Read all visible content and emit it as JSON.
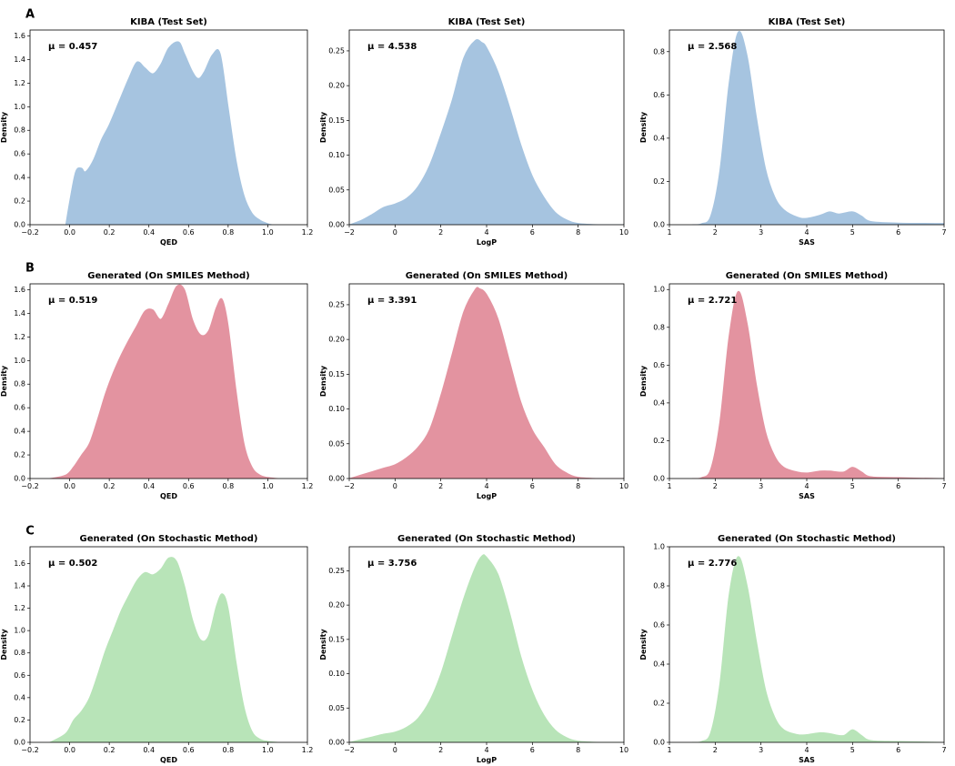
{
  "figure": {
    "rows": [
      {
        "label": "A",
        "color": "#a6c4e0"
      },
      {
        "label": "B",
        "color": "#e393a0"
      },
      {
        "label": "C",
        "color": "#b8e4b8"
      }
    ]
  },
  "chart_data": [
    {
      "type": "area",
      "row": 0,
      "col": 0,
      "title": "KIBA (Test Set)",
      "xlabel": "QED",
      "ylabel": "Density",
      "annotation": "μ = 0.457",
      "xlim": [
        -0.2,
        1.2
      ],
      "ylim": [
        0,
        1.65
      ],
      "xticks": [
        "−0.2",
        "0.0",
        "0.2",
        "0.4",
        "0.6",
        "0.8",
        "1.0",
        "1.2"
      ],
      "yticks": [
        "0.0",
        "0.2",
        "0.4",
        "0.6",
        "0.8",
        "1.0",
        "1.2",
        "1.4",
        "1.6"
      ],
      "x": [
        -0.02,
        0.0,
        0.03,
        0.06,
        0.08,
        0.12,
        0.16,
        0.2,
        0.25,
        0.3,
        0.34,
        0.38,
        0.42,
        0.46,
        0.5,
        0.55,
        0.58,
        0.62,
        0.65,
        0.68,
        0.72,
        0.76,
        0.8,
        0.84,
        0.88,
        0.92,
        0.96,
        1.0,
        1.02
      ],
      "y": [
        0.0,
        0.2,
        0.45,
        0.48,
        0.45,
        0.55,
        0.72,
        0.85,
        1.05,
        1.25,
        1.38,
        1.33,
        1.28,
        1.36,
        1.5,
        1.55,
        1.45,
        1.3,
        1.24,
        1.3,
        1.44,
        1.45,
        1.0,
        0.55,
        0.25,
        0.1,
        0.04,
        0.01,
        0.0
      ]
    },
    {
      "type": "area",
      "row": 0,
      "col": 1,
      "title": "KIBA (Test Set)",
      "xlabel": "LogP",
      "ylabel": "Density",
      "annotation": "μ = 4.538",
      "xlim": [
        -2,
        10
      ],
      "ylim": [
        0,
        0.28
      ],
      "xticks": [
        "−2",
        "0",
        "2",
        "4",
        "6",
        "8",
        "10"
      ],
      "yticks": [
        "0.00",
        "0.05",
        "0.10",
        "0.15",
        "0.20",
        "0.25"
      ],
      "x": [
        -2.0,
        -1.5,
        -1.0,
        -0.5,
        0.0,
        0.5,
        1.0,
        1.5,
        2.0,
        2.5,
        3.0,
        3.5,
        3.8,
        4.0,
        4.5,
        5.0,
        5.5,
        6.0,
        6.5,
        7.0,
        7.5,
        8.0,
        9.0,
        10.0
      ],
      "y": [
        0.0,
        0.006,
        0.015,
        0.025,
        0.03,
        0.038,
        0.055,
        0.085,
        0.13,
        0.18,
        0.24,
        0.265,
        0.262,
        0.255,
        0.22,
        0.17,
        0.115,
        0.07,
        0.04,
        0.018,
        0.007,
        0.002,
        0.0,
        0.0
      ]
    },
    {
      "type": "area",
      "row": 0,
      "col": 2,
      "title": "KIBA (Test Set)",
      "xlabel": "SAS",
      "ylabel": "Density",
      "annotation": "μ = 2.568",
      "xlim": [
        1,
        7
      ],
      "ylim": [
        0,
        0.9
      ],
      "xticks": [
        "1",
        "2",
        "3",
        "4",
        "5",
        "6",
        "7"
      ],
      "yticks": [
        "0.0",
        "0.2",
        "0.4",
        "0.6",
        "0.8"
      ],
      "x": [
        1.5,
        1.7,
        1.9,
        2.1,
        2.3,
        2.5,
        2.7,
        2.9,
        3.1,
        3.3,
        3.5,
        3.8,
        4.0,
        4.3,
        4.5,
        4.7,
        5.0,
        5.2,
        5.4,
        6.0,
        7.0
      ],
      "y": [
        0.0,
        0.005,
        0.04,
        0.25,
        0.65,
        0.89,
        0.78,
        0.5,
        0.26,
        0.13,
        0.07,
        0.035,
        0.03,
        0.045,
        0.06,
        0.05,
        0.06,
        0.04,
        0.015,
        0.008,
        0.006
      ]
    },
    {
      "type": "area",
      "row": 1,
      "col": 0,
      "title": "Generated (On SMILES Method)",
      "xlabel": "QED",
      "ylabel": "Density",
      "annotation": "μ = 0.519",
      "xlim": [
        -0.2,
        1.2
      ],
      "ylim": [
        0,
        1.65
      ],
      "xticks": [
        "−0.2",
        "0.0",
        "0.2",
        "0.4",
        "0.6",
        "0.8",
        "1.0",
        "1.2"
      ],
      "yticks": [
        "0.0",
        "0.2",
        "0.4",
        "0.6",
        "0.8",
        "1.0",
        "1.2",
        "1.4",
        "1.6"
      ],
      "x": [
        -0.1,
        -0.02,
        0.02,
        0.06,
        0.1,
        0.14,
        0.18,
        0.22,
        0.26,
        0.3,
        0.34,
        0.38,
        0.42,
        0.46,
        0.5,
        0.54,
        0.58,
        0.62,
        0.66,
        0.7,
        0.74,
        0.77,
        0.8,
        0.84,
        0.88,
        0.92,
        0.96,
        1.0,
        1.05
      ],
      "y": [
        0.0,
        0.03,
        0.1,
        0.2,
        0.3,
        0.5,
        0.72,
        0.9,
        1.05,
        1.18,
        1.3,
        1.42,
        1.43,
        1.35,
        1.48,
        1.63,
        1.6,
        1.35,
        1.22,
        1.25,
        1.45,
        1.52,
        1.3,
        0.75,
        0.3,
        0.1,
        0.03,
        0.01,
        0.0
      ]
    },
    {
      "type": "area",
      "row": 1,
      "col": 1,
      "title": "Generated (On SMILES Method)",
      "xlabel": "LogP",
      "ylabel": "Density",
      "annotation": "μ = 3.391",
      "xlim": [
        -2,
        10
      ],
      "ylim": [
        0,
        0.28
      ],
      "xticks": [
        "−2",
        "0",
        "2",
        "4",
        "6",
        "8",
        "10"
      ],
      "yticks": [
        "0.00",
        "0.05",
        "0.10",
        "0.15",
        "0.20",
        "0.25"
      ],
      "x": [
        -2.0,
        -1.5,
        -1.0,
        -0.5,
        0.0,
        0.5,
        1.0,
        1.5,
        2.0,
        2.5,
        3.0,
        3.5,
        3.7,
        4.0,
        4.5,
        5.0,
        5.5,
        6.0,
        6.5,
        7.0,
        7.5,
        8.0,
        9.0,
        10.0
      ],
      "y": [
        0.0,
        0.005,
        0.01,
        0.015,
        0.02,
        0.03,
        0.045,
        0.07,
        0.12,
        0.18,
        0.24,
        0.272,
        0.273,
        0.265,
        0.23,
        0.17,
        0.11,
        0.07,
        0.045,
        0.02,
        0.008,
        0.002,
        0.0,
        0.0
      ]
    },
    {
      "type": "area",
      "row": 1,
      "col": 2,
      "title": "Generated (On SMILES Method)",
      "xlabel": "SAS",
      "ylabel": "Density",
      "annotation": "μ = 2.721",
      "xlim": [
        1,
        7
      ],
      "ylim": [
        0,
        1.03
      ],
      "xticks": [
        "1",
        "2",
        "3",
        "4",
        "5",
        "6",
        "7"
      ],
      "yticks": [
        "0.0",
        "0.2",
        "0.4",
        "0.6",
        "0.8",
        "1.0"
      ],
      "x": [
        1.5,
        1.7,
        1.9,
        2.1,
        2.3,
        2.5,
        2.7,
        2.9,
        3.1,
        3.3,
        3.5,
        3.8,
        4.0,
        4.3,
        4.5,
        4.8,
        5.0,
        5.2,
        5.4,
        6.0,
        7.0
      ],
      "y": [
        0.0,
        0.005,
        0.05,
        0.3,
        0.75,
        0.99,
        0.82,
        0.5,
        0.25,
        0.12,
        0.06,
        0.035,
        0.03,
        0.04,
        0.04,
        0.035,
        0.06,
        0.035,
        0.01,
        0.005,
        0.0
      ]
    },
    {
      "type": "area",
      "row": 2,
      "col": 0,
      "title": "Generated (On Stochastic Method)",
      "xlabel": "QED",
      "ylabel": "Density",
      "annotation": "μ = 0.502",
      "xlim": [
        -0.2,
        1.2
      ],
      "ylim": [
        0,
        1.75
      ],
      "xticks": [
        "−0.2",
        "0.0",
        "0.2",
        "0.4",
        "0.6",
        "0.8",
        "1.0",
        "1.2"
      ],
      "yticks": [
        "0.0",
        "0.2",
        "0.4",
        "0.6",
        "0.8",
        "1.0",
        "1.2",
        "1.4",
        "1.6"
      ],
      "x": [
        -0.1,
        -0.02,
        0.02,
        0.06,
        0.1,
        0.14,
        0.18,
        0.22,
        0.26,
        0.3,
        0.34,
        0.38,
        0.42,
        0.46,
        0.5,
        0.54,
        0.58,
        0.62,
        0.66,
        0.7,
        0.74,
        0.77,
        0.8,
        0.84,
        0.88,
        0.92,
        0.96,
        1.0,
        1.05
      ],
      "y": [
        0.0,
        0.08,
        0.2,
        0.28,
        0.4,
        0.6,
        0.82,
        1.0,
        1.18,
        1.32,
        1.45,
        1.52,
        1.5,
        1.55,
        1.65,
        1.62,
        1.4,
        1.1,
        0.92,
        0.95,
        1.22,
        1.33,
        1.2,
        0.72,
        0.32,
        0.1,
        0.03,
        0.01,
        0.0
      ]
    },
    {
      "type": "area",
      "row": 2,
      "col": 1,
      "title": "Generated (On Stochastic Method)",
      "xlabel": "LogP",
      "ylabel": "Density",
      "annotation": "μ = 3.756",
      "xlim": [
        -2,
        10
      ],
      "ylim": [
        0,
        0.285
      ],
      "xticks": [
        "−2",
        "0",
        "2",
        "4",
        "6",
        "8",
        "10"
      ],
      "yticks": [
        "0.00",
        "0.05",
        "0.10",
        "0.15",
        "0.20",
        "0.25"
      ],
      "x": [
        -2.0,
        -1.5,
        -1.0,
        -0.5,
        0.0,
        0.5,
        1.0,
        1.5,
        2.0,
        2.5,
        3.0,
        3.5,
        3.8,
        4.0,
        4.5,
        5.0,
        5.5,
        6.0,
        6.5,
        7.0,
        7.5,
        8.0,
        9.0,
        10.0
      ],
      "y": [
        0.0,
        0.004,
        0.008,
        0.012,
        0.015,
        0.022,
        0.035,
        0.06,
        0.1,
        0.155,
        0.21,
        0.255,
        0.272,
        0.27,
        0.245,
        0.19,
        0.125,
        0.075,
        0.04,
        0.018,
        0.007,
        0.002,
        0.0,
        0.0
      ]
    },
    {
      "type": "area",
      "row": 2,
      "col": 2,
      "title": "Generated (On Stochastic Method)",
      "xlabel": "SAS",
      "ylabel": "Density",
      "annotation": "μ = 2.776",
      "xlim": [
        1,
        7
      ],
      "ylim": [
        0,
        1.0
      ],
      "xticks": [
        "1",
        "2",
        "3",
        "4",
        "5",
        "6",
        "7"
      ],
      "yticks": [
        "0.0",
        "0.2",
        "0.4",
        "0.6",
        "0.8",
        "1.0"
      ],
      "x": [
        1.5,
        1.7,
        1.9,
        2.1,
        2.3,
        2.5,
        2.7,
        2.9,
        3.1,
        3.3,
        3.5,
        3.8,
        4.0,
        4.3,
        4.5,
        4.8,
        5.0,
        5.2,
        5.4,
        6.0,
        7.0
      ],
      "y": [
        0.0,
        0.005,
        0.05,
        0.3,
        0.75,
        0.95,
        0.8,
        0.52,
        0.27,
        0.13,
        0.065,
        0.04,
        0.04,
        0.05,
        0.045,
        0.035,
        0.065,
        0.035,
        0.01,
        0.005,
        0.0
      ]
    }
  ]
}
